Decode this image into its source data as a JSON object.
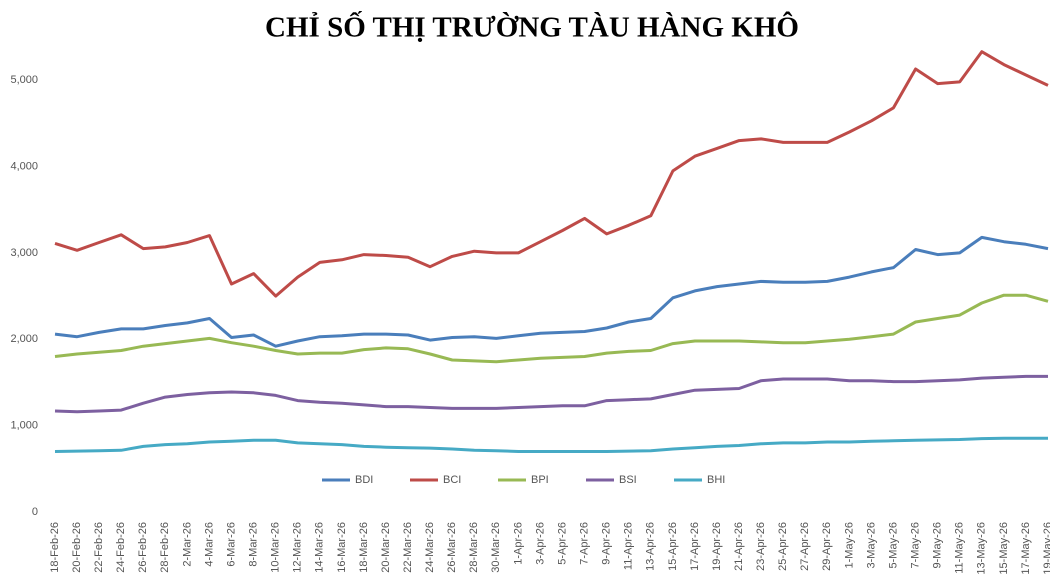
{
  "chart_data": {
    "type": "line",
    "title": "CHỈ SỐ THỊ TRƯỜNG TÀU HÀNG KHÔ",
    "categories": [
      "18-Feb-26",
      "20-Feb-26",
      "22-Feb-26",
      "24-Feb-26",
      "26-Feb-26",
      "28-Feb-26",
      "2-Mar-26",
      "4-Mar-26",
      "6-Mar-26",
      "8-Mar-26",
      "10-Mar-26",
      "12-Mar-26",
      "14-Mar-26",
      "16-Mar-26",
      "18-Mar-26",
      "20-Mar-26",
      "22-Mar-26",
      "24-Mar-26",
      "26-Mar-26",
      "28-Mar-26",
      "30-Mar-26",
      "1-Apr-26",
      "3-Apr-26",
      "5-Apr-26",
      "7-Apr-26",
      "9-Apr-26",
      "11-Apr-26",
      "13-Apr-26",
      "15-Apr-26",
      "17-Apr-26",
      "19-Apr-26",
      "21-Apr-26",
      "23-Apr-26",
      "25-Apr-26",
      "27-Apr-26",
      "29-Apr-26",
      "1-May-26",
      "3-May-26",
      "5-May-26",
      "7-May-26",
      "9-May-26",
      "11-May-26",
      "13-May-26",
      "15-May-26",
      "17-May-26",
      "19-May-26"
    ],
    "series": [
      {
        "name": "BDI",
        "color": "#4a7ebb",
        "values": [
          2060,
          2030,
          2080,
          2120,
          2120,
          2160,
          2190,
          2240,
          2020,
          2050,
          1920,
          1980,
          2030,
          2040,
          2060,
          2060,
          2050,
          1990,
          2020,
          2030,
          2010,
          2040,
          2070,
          2080,
          2090,
          2130,
          2200,
          2240,
          2480,
          2560,
          2610,
          2640,
          2670,
          2660,
          2660,
          2670,
          2720,
          2780,
          2830,
          3040,
          2980,
          3000,
          3180,
          3130,
          3100,
          3050
        ]
      },
      {
        "name": "BCI",
        "color": "#be4b48",
        "values": [
          3110,
          3030,
          3120,
          3210,
          3050,
          3070,
          3120,
          3200,
          2640,
          2760,
          2500,
          2720,
          2890,
          2920,
          2980,
          2970,
          2950,
          2840,
          2960,
          3020,
          3000,
          3000,
          3130,
          3260,
          3400,
          3220,
          3320,
          3430,
          3950,
          4120,
          4210,
          4300,
          4320,
          4280,
          4280,
          4280,
          4400,
          4530,
          4680,
          5130,
          4960,
          4980,
          5330,
          5180,
          5060,
          4940
        ]
      },
      {
        "name": "BPI",
        "color": "#98b954",
        "values": [
          1800,
          1830,
          1850,
          1870,
          1920,
          1950,
          1980,
          2010,
          1960,
          1920,
          1870,
          1830,
          1840,
          1840,
          1880,
          1900,
          1890,
          1830,
          1760,
          1750,
          1740,
          1760,
          1780,
          1790,
          1800,
          1840,
          1860,
          1870,
          1950,
          1980,
          1980,
          1980,
          1970,
          1960,
          1960,
          1980,
          2000,
          2030,
          2060,
          2200,
          2240,
          2280,
          2420,
          2510,
          2510,
          2440
        ]
      },
      {
        "name": "BSI",
        "color": "#7d60a0",
        "values": [
          1170,
          1160,
          1170,
          1180,
          1260,
          1330,
          1360,
          1380,
          1390,
          1380,
          1350,
          1290,
          1270,
          1260,
          1240,
          1220,
          1220,
          1210,
          1200,
          1200,
          1200,
          1210,
          1220,
          1230,
          1230,
          1290,
          1300,
          1310,
          1360,
          1410,
          1420,
          1430,
          1520,
          1540,
          1540,
          1540,
          1520,
          1520,
          1510,
          1510,
          1520,
          1530,
          1550,
          1560,
          1570,
          1570
        ]
      },
      {
        "name": "BHI",
        "color": "#46aac5",
        "values": [
          700,
          705,
          710,
          715,
          760,
          780,
          790,
          810,
          820,
          830,
          830,
          800,
          790,
          780,
          760,
          750,
          745,
          740,
          730,
          715,
          710,
          700,
          700,
          700,
          700,
          700,
          705,
          710,
          730,
          745,
          760,
          770,
          790,
          800,
          800,
          810,
          810,
          820,
          825,
          830,
          835,
          840,
          850,
          855,
          855,
          855
        ]
      }
    ],
    "ylim": [
      0,
      5500
    ],
    "yticks": [
      0,
      {
        "value": 1000,
        "label": "1,000"
      },
      {
        "value": 2000,
        "label": "2,000"
      },
      {
        "value": 3000,
        "label": "3,000"
      },
      {
        "value": 4000,
        "label": "4,000"
      },
      {
        "value": 5000,
        "label": "5,000"
      }
    ],
    "grid": false,
    "legend": "bottom"
  }
}
